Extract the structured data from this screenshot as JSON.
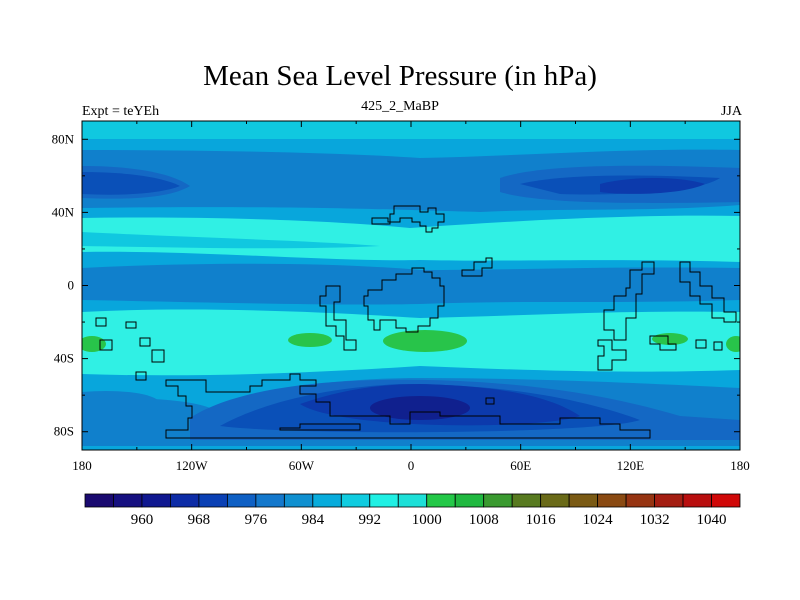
{
  "figure": {
    "title": "Mean Sea Level Pressure (in hPa)",
    "left_label": "Expt = teYEh",
    "center_label": "425_2_MaBP",
    "right_label": "JJA",
    "variable": "Mean Sea Level Pressure",
    "units": "hPa",
    "projection": "cylindrical equidistant"
  },
  "axes": {
    "lon_range": [
      -180,
      180
    ],
    "lat_range": [
      -90,
      90
    ],
    "lon_ticks": [
      {
        "value": -180,
        "label": "180"
      },
      {
        "value": -120,
        "label": "120W"
      },
      {
        "value": -60,
        "label": "60W"
      },
      {
        "value": 0,
        "label": "0"
      },
      {
        "value": 60,
        "label": "60E"
      },
      {
        "value": 120,
        "label": "120E"
      },
      {
        "value": 180,
        "label": "180"
      }
    ],
    "lat_ticks": [
      {
        "value": 80,
        "label": "80N"
      },
      {
        "value": 40,
        "label": "40N"
      },
      {
        "value": 0,
        "label": "0"
      },
      {
        "value": -40,
        "label": "40S"
      },
      {
        "value": -80,
        "label": "80S"
      }
    ]
  },
  "colorbar": {
    "levels": [
      956,
      960,
      964,
      968,
      972,
      976,
      980,
      984,
      988,
      992,
      996,
      1000,
      1004,
      1008,
      1012,
      1016,
      1020,
      1024,
      1028,
      1032,
      1036,
      1040
    ],
    "colors": [
      "#1a0a70",
      "#161080",
      "#101890",
      "#0d2ca6",
      "#0a40b4",
      "#0f60c4",
      "#1478cc",
      "#1090d0",
      "#08acdc",
      "#10cce0",
      "#20f0e4",
      "#1de0d8",
      "#24c848",
      "#20b840",
      "#3a9a30",
      "#587a20",
      "#6a6a18",
      "#7a5a14",
      "#8a4a12",
      "#963412",
      "#a41e12",
      "#b80e0e",
      "#d00808"
    ],
    "labels": [
      {
        "value": 960,
        "text": "960"
      },
      {
        "value": 968,
        "text": "968"
      },
      {
        "value": 976,
        "text": "976"
      },
      {
        "value": 984,
        "text": "984"
      },
      {
        "value": 992,
        "text": "992"
      },
      {
        "value": 1000,
        "text": "1000"
      },
      {
        "value": 1008,
        "text": "1008"
      },
      {
        "value": 1016,
        "text": "1016"
      },
      {
        "value": 1024,
        "text": "1024"
      },
      {
        "value": 1032,
        "text": "1032"
      },
      {
        "value": 1040,
        "text": "1040"
      }
    ]
  },
  "field_colors": {
    "c968": "#10208e",
    "c972": "#0c3aac",
    "c976": "#0a50b8",
    "c980": "#1468c4",
    "c984": "#1080cc",
    "c988": "#08a6dc",
    "c992": "#10c8e0",
    "c996": "#30f0e4",
    "c1004": "#28c44a",
    "coast": "#000000"
  }
}
